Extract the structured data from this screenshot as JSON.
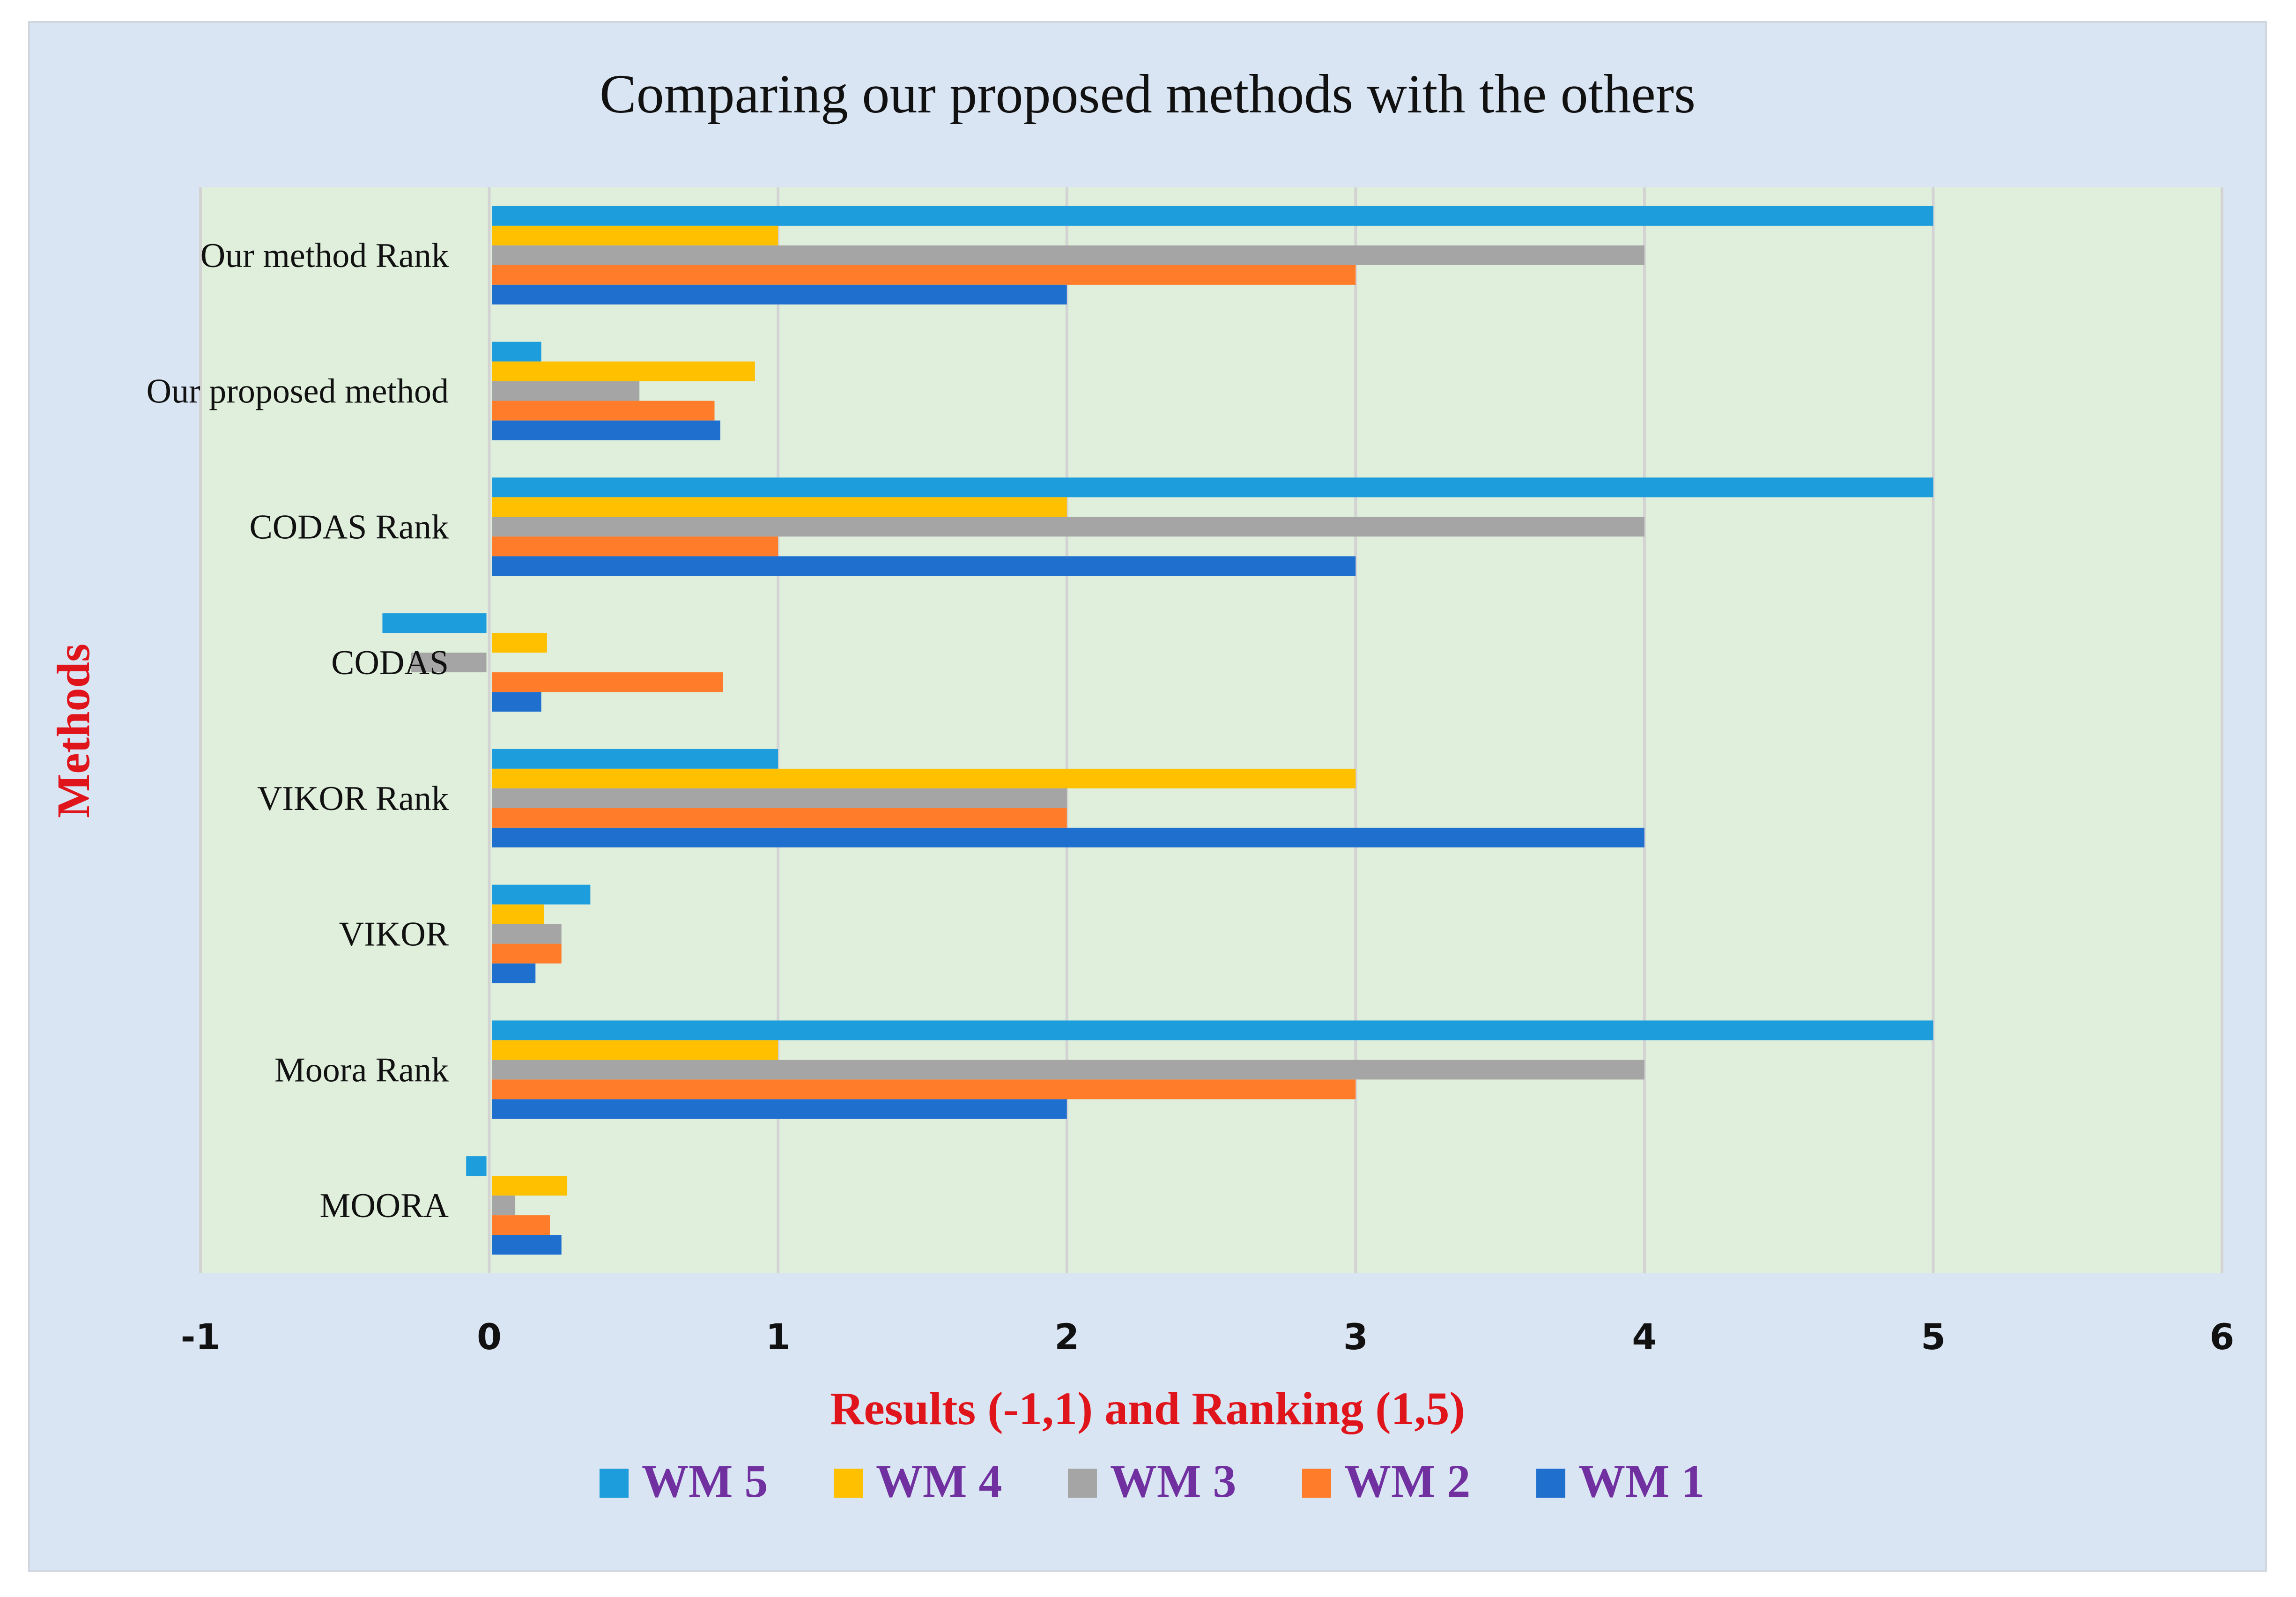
{
  "chart_data": {
    "type": "bar",
    "orientation": "horizontal",
    "title": "Comparing our proposed  methods with the others",
    "xlabel": "Results  (-1,1) and Ranking  (1,5)",
    "ylabel": "Methods",
    "xlim": [
      -1,
      6
    ],
    "xticks": [
      "-1",
      "0",
      "1",
      "2",
      "3",
      "4",
      "5",
      "6"
    ],
    "grid": "vertical",
    "legend_position": "bottom",
    "categories": [
      "Our method Rank",
      "Our proposed method",
      "CODAS Rank",
      "CODAS",
      "VIKOR Rank",
      "VIKOR",
      "Moora Rank",
      "MOORA"
    ],
    "series": [
      {
        "name": "WM 5",
        "color": "#1e9ddc",
        "values": [
          5,
          0.18,
          5,
          -0.37,
          1,
          0.35,
          5,
          -0.08
        ]
      },
      {
        "name": "WM 4",
        "color": "#ffc000",
        "values": [
          1,
          0.92,
          2,
          0.2,
          3,
          0.19,
          1,
          0.27
        ]
      },
      {
        "name": "WM 3",
        "color": "#a5a5a5",
        "values": [
          4,
          0.52,
          4,
          -0.27,
          2,
          0.25,
          4,
          0.09
        ]
      },
      {
        "name": "WM 2",
        "color": "#ff7c2a",
        "values": [
          3,
          0.78,
          1,
          0.81,
          2,
          0.25,
          3,
          0.21
        ]
      },
      {
        "name": "WM 1",
        "color": "#1f6fcf",
        "values": [
          2,
          0.8,
          3,
          0.18,
          4,
          0.16,
          2,
          0.25
        ]
      }
    ],
    "legend_order": [
      "WM 5",
      "WM 4",
      "WM 3",
      "WM 2",
      "WM 1"
    ],
    "colors": {
      "frame_background": "#dae5f3",
      "plot_background": "#dfefdb",
      "gridline": "#d3d3d3",
      "axis_title": "#e0141b",
      "legend_text": "#7030a0"
    }
  }
}
